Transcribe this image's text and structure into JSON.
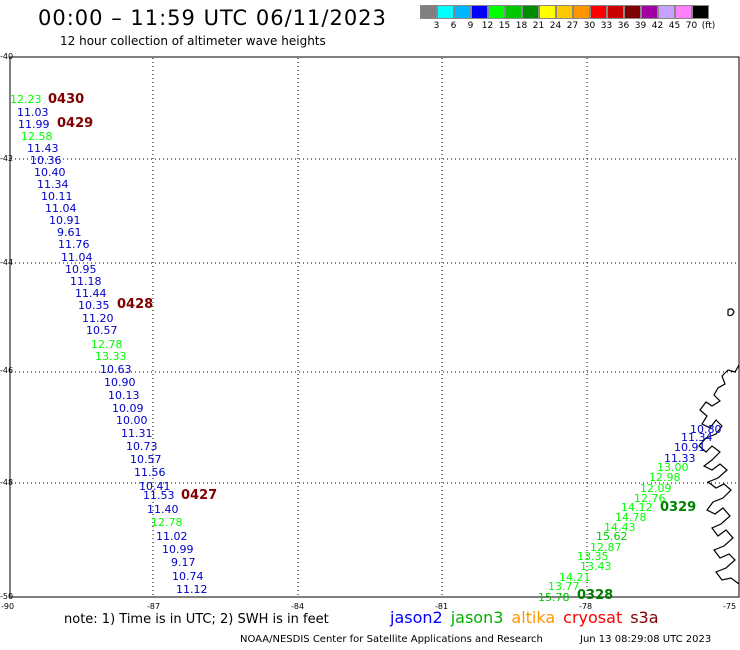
{
  "header": {
    "title": "00:00 – 11:59 UTC 06/11/2023",
    "subtitle": "12 hour collection of altimeter wave heights"
  },
  "colorbar": {
    "colors": [
      "#808080",
      "#00ffff",
      "#00b4ff",
      "#0000ff",
      "#00ff00",
      "#00c800",
      "#008c00",
      "#ffff00",
      "#ffc800",
      "#ff9600",
      "#ff0000",
      "#c80000",
      "#800000",
      "#a000a0",
      "#c8a0ff",
      "#ff80ff",
      "#000000"
    ],
    "labels": [
      "3",
      "6",
      "9",
      "12",
      "15",
      "18",
      "21",
      "24",
      "27",
      "30",
      "33",
      "36",
      "39",
      "42",
      "45",
      "70"
    ],
    "unit": "(ft)"
  },
  "axes": {
    "lon_labels": [
      "-90",
      "-87",
      "-84",
      "-81",
      "-78",
      "-75"
    ],
    "lat_labels": [
      "-40",
      "-42",
      "-44",
      "-46",
      "-48",
      "-50"
    ]
  },
  "observations": [
    {
      "v": "12.23",
      "c": "#00ff00",
      "t": "g"
    },
    {
      "v": "11.03",
      "c": "#0000c8",
      "t": "b"
    },
    {
      "v": "11.99",
      "c": "#0000c8",
      "t": "b"
    },
    {
      "v": "12.58",
      "c": "#00ff00",
      "t": "g"
    },
    {
      "v": "11.43",
      "c": "#0000c8",
      "t": "b"
    },
    {
      "v": "10.36",
      "c": "#0000c8",
      "t": "b"
    },
    {
      "v": "10.40",
      "c": "#0000c8",
      "t": "b"
    },
    {
      "v": "11.34",
      "c": "#0000c8",
      "t": "b"
    },
    {
      "v": "10.11",
      "c": "#0000c8",
      "t": "b"
    },
    {
      "v": "11.04",
      "c": "#0000c8",
      "t": "b"
    },
    {
      "v": "10.91",
      "c": "#0000c8",
      "t": "b"
    },
    {
      "v": "9.61",
      "c": "#0000c8",
      "t": "b"
    },
    {
      "v": "11.76",
      "c": "#0000c8",
      "t": "b"
    },
    {
      "v": "11.04",
      "c": "#0000c8",
      "t": "b"
    },
    {
      "v": "10.95",
      "c": "#0000c8",
      "t": "b"
    },
    {
      "v": "11.18",
      "c": "#0000c8",
      "t": "b"
    },
    {
      "v": "11.44",
      "c": "#0000c8",
      "t": "b"
    },
    {
      "v": "10.35",
      "c": "#0000c8",
      "t": "b"
    },
    {
      "v": "11.20",
      "c": "#0000c8",
      "t": "b"
    },
    {
      "v": "10.57",
      "c": "#0000c8",
      "t": "b"
    },
    {
      "v": "12.78",
      "c": "#00ff00",
      "t": "g"
    },
    {
      "v": "13.33",
      "c": "#00ff00",
      "t": "g"
    },
    {
      "v": "10.63",
      "c": "#0000c8",
      "t": "b"
    },
    {
      "v": "10.90",
      "c": "#0000c8",
      "t": "b"
    },
    {
      "v": "10.13",
      "c": "#0000c8",
      "t": "b"
    },
    {
      "v": "10.09",
      "c": "#0000c8",
      "t": "b"
    },
    {
      "v": "10.00",
      "c": "#0000c8",
      "t": "b"
    },
    {
      "v": "11.31",
      "c": "#0000c8",
      "t": "b"
    },
    {
      "v": "10.73",
      "c": "#0000c8",
      "t": "b"
    },
    {
      "v": "10.57",
      "c": "#0000c8",
      "t": "b"
    },
    {
      "v": "11.56",
      "c": "#0000c8",
      "t": "b"
    },
    {
      "v": "10.41",
      "c": "#0000c8",
      "t": "b"
    },
    {
      "v": "11.53",
      "c": "#0000c8",
      "t": "b"
    },
    {
      "v": "11.40",
      "c": "#0000c8",
      "t": "b"
    },
    {
      "v": "12.78",
      "c": "#00ff00",
      "t": "g"
    },
    {
      "v": "11.02",
      "c": "#0000c8",
      "t": "b"
    },
    {
      "v": "10.99",
      "c": "#0000c8",
      "t": "b"
    },
    {
      "v": "9.17",
      "c": "#0000c8",
      "t": "b"
    },
    {
      "v": "10.74",
      "c": "#0000c8",
      "t": "b"
    },
    {
      "v": "11.12",
      "c": "#0000c8",
      "t": "b"
    },
    {
      "v": "10.80",
      "c": "#0000c8",
      "t": "b"
    },
    {
      "v": "11.34",
      "c": "#0000c8",
      "t": "b"
    },
    {
      "v": "10.91",
      "c": "#0000c8",
      "t": "b"
    },
    {
      "v": "11.33",
      "c": "#0000c8",
      "t": "b"
    },
    {
      "v": "13.00",
      "c": "#00ff00",
      "t": "g"
    },
    {
      "v": "12.98",
      "c": "#00ff00",
      "t": "g"
    },
    {
      "v": "12.09",
      "c": "#00ff00",
      "t": "g"
    },
    {
      "v": "12.76",
      "c": "#00ff00",
      "t": "g"
    },
    {
      "v": "14.12",
      "c": "#00ff00",
      "t": "g"
    },
    {
      "v": "14.78",
      "c": "#00ff00",
      "t": "g"
    },
    {
      "v": "14.43",
      "c": "#00ff00",
      "t": "g"
    },
    {
      "v": "15.62",
      "c": "#00c800",
      "t": "g"
    },
    {
      "v": "12.87",
      "c": "#00ff00",
      "t": "g"
    },
    {
      "v": "13.35",
      "c": "#00ff00",
      "t": "g"
    },
    {
      "v": "13.43",
      "c": "#00ff00",
      "t": "g"
    },
    {
      "v": "14.21",
      "c": "#00ff00",
      "t": "g"
    },
    {
      "v": "13.77",
      "c": "#00ff00",
      "t": "g"
    },
    {
      "v": "15.78",
      "c": "#00c800",
      "t": "g"
    }
  ],
  "passes": [
    {
      "label": "0430",
      "c": "#800000"
    },
    {
      "label": "0429",
      "c": "#800000"
    },
    {
      "label": "0428",
      "c": "#800000"
    },
    {
      "label": "0427",
      "c": "#800000"
    },
    {
      "label": "0329",
      "c": "#008000"
    },
    {
      "label": "0328",
      "c": "#008000"
    }
  ],
  "note": "note: 1) Time is in UTC; 2) SWH is in feet",
  "satellites": [
    {
      "name": "jason2",
      "c": "#0000ff"
    },
    {
      "name": "jason3",
      "c": "#00b000"
    },
    {
      "name": "altika",
      "c": "#ff9600"
    },
    {
      "name": "cryosat",
      "c": "#ff0000"
    },
    {
      "name": "s3a",
      "c": "#800000"
    }
  ],
  "footer": {
    "left": "NOAA/NESDIS Center for Satellite Applications and Research",
    "right": "Jun 13 08:29:08 UTC 2023"
  }
}
